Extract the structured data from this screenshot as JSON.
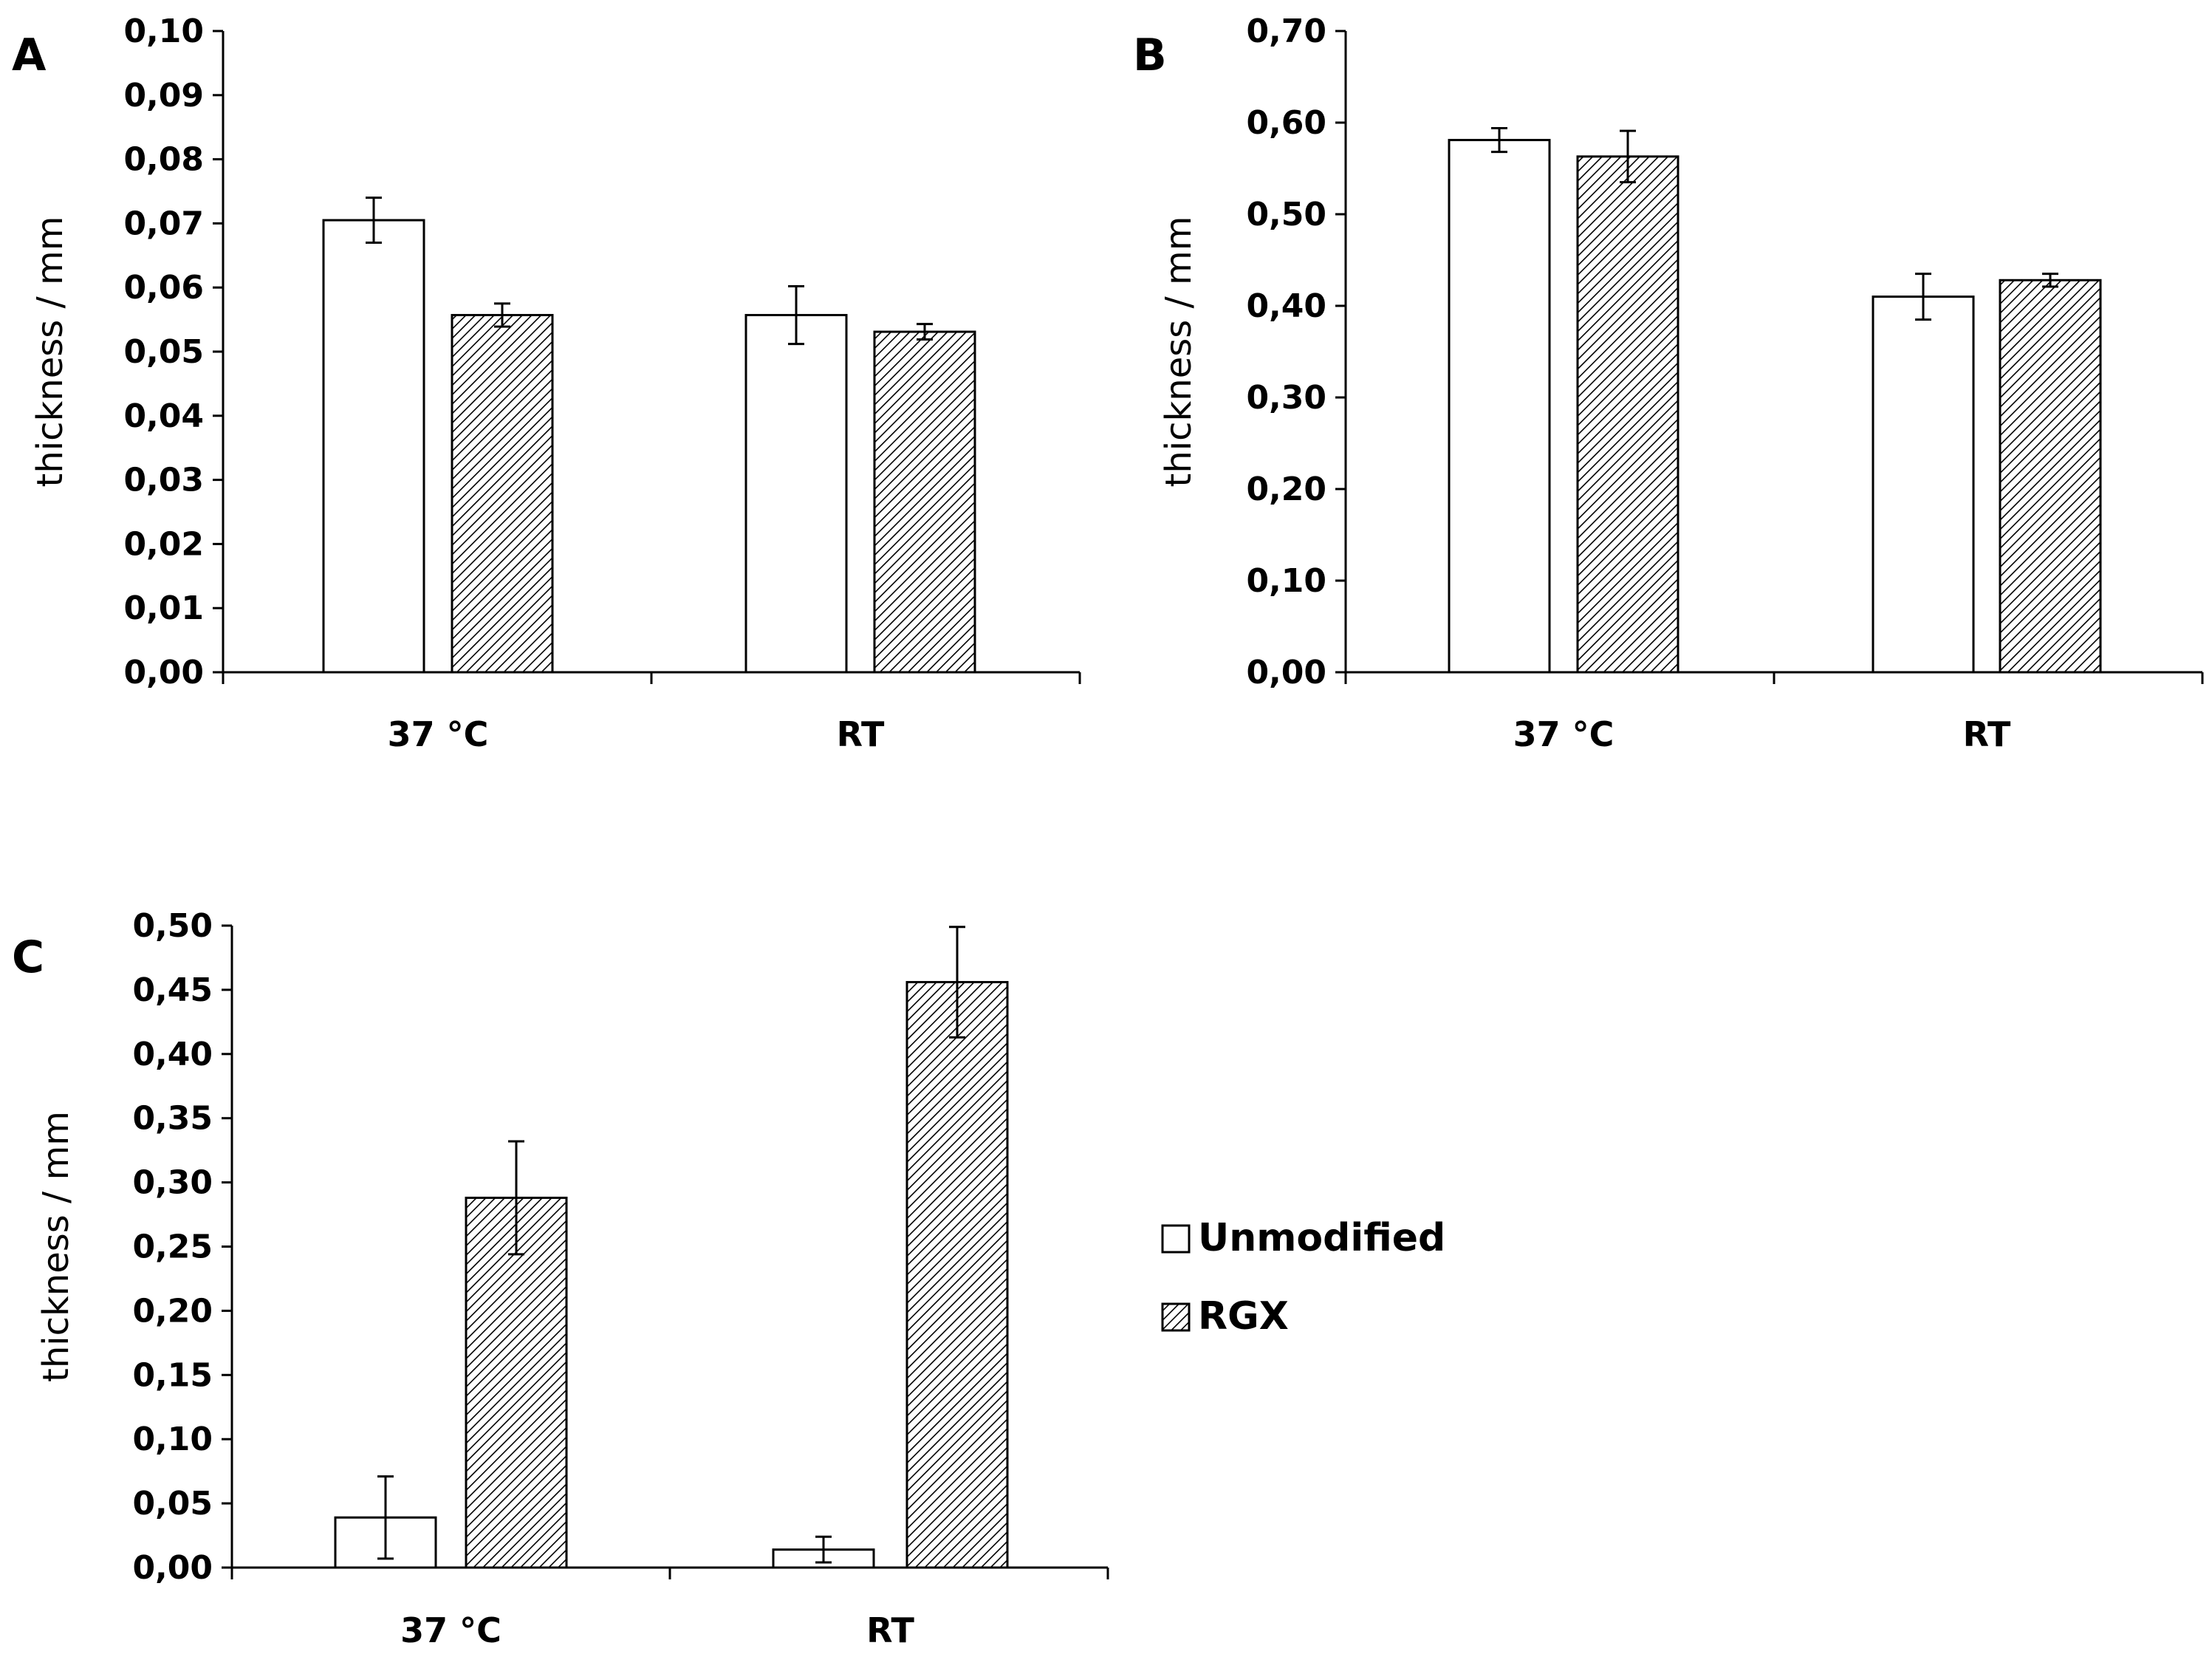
{
  "colors": {
    "bar_outline": "#000000",
    "unmodified_fill": "#ffffff",
    "hatch_line": "#000000",
    "background": "#ffffff"
  },
  "legend": {
    "items": [
      {
        "name": "Unmodified",
        "pattern": "none"
      },
      {
        "name": "RGX",
        "pattern": "diagonal-hatch"
      }
    ]
  },
  "chart_data": [
    {
      "panel": "A",
      "type": "bar",
      "title": "",
      "ylabel": "thickness / mm",
      "xlabel": "",
      "categories": [
        "37 °C",
        "RT"
      ],
      "ylim": [
        0,
        0.1
      ],
      "yticks": [
        "0,00",
        "0,01",
        "0,02",
        "0,03",
        "0,04",
        "0,05",
        "0,06",
        "0,07",
        "0,08",
        "0,09",
        "0,10"
      ],
      "series": [
        {
          "name": "Unmodified",
          "values": [
            0.0705,
            0.0557
          ],
          "errors": [
            0.0035,
            0.0045
          ]
        },
        {
          "name": "RGX",
          "values": [
            0.0557,
            0.0531
          ],
          "errors": [
            0.0018,
            0.0012
          ]
        }
      ]
    },
    {
      "panel": "B",
      "type": "bar",
      "title": "",
      "ylabel": "thickness / mm",
      "xlabel": "",
      "categories": [
        "37 °C",
        "RT"
      ],
      "ylim": [
        0,
        0.7
      ],
      "yticks": [
        "0,00",
        "0,10",
        "0,20",
        "0,30",
        "0,40",
        "0,50",
        "0,60",
        "0,70"
      ],
      "series": [
        {
          "name": "Unmodified",
          "values": [
            0.581,
            0.41
          ],
          "errors": [
            0.013,
            0.025
          ]
        },
        {
          "name": "RGX",
          "values": [
            0.563,
            0.428
          ],
          "errors": [
            0.028,
            0.007
          ]
        }
      ]
    },
    {
      "panel": "C",
      "type": "bar",
      "title": "",
      "ylabel": "thickness / mm",
      "xlabel": "",
      "categories": [
        "37 °C",
        "RT"
      ],
      "ylim": [
        0,
        0.5
      ],
      "yticks": [
        "0,00",
        "0,05",
        "0,10",
        "0,15",
        "0,20",
        "0,25",
        "0,30",
        "0,35",
        "0,40",
        "0,45",
        "0,50"
      ],
      "series": [
        {
          "name": "Unmodified",
          "values": [
            0.039,
            0.014
          ],
          "errors": [
            0.032,
            0.01
          ]
        },
        {
          "name": "RGX",
          "values": [
            0.288,
            0.456
          ],
          "errors": [
            0.044,
            0.043
          ]
        }
      ]
    }
  ]
}
